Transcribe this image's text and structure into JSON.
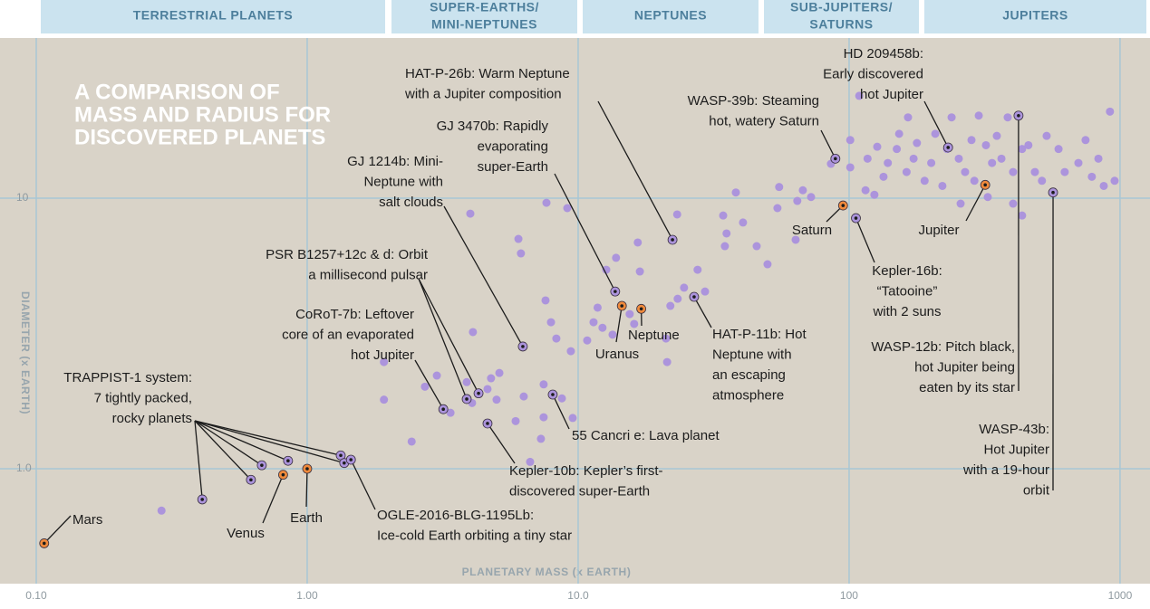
{
  "header": {
    "bands": [
      {
        "lines": [
          "TERRESTRIAL PLANETS"
        ]
      },
      {
        "lines": [
          "SUPER-EARTHS/",
          "MINI-NEPTUNES"
        ]
      },
      {
        "lines": [
          "NEPTUNES"
        ]
      },
      {
        "lines": [
          "SUB-JUPITERS/",
          "SATURNS"
        ]
      },
      {
        "lines": [
          "JUPITERS"
        ]
      }
    ]
  },
  "chart_data": {
    "type": "scatter",
    "title": [
      "A COMPARISON OF",
      "MASS AND RADIUS FOR",
      "DISCOVERED PLANETS"
    ],
    "x_label": "PLANETARY MASS (x EARTH)",
    "y_label": "DIAMETER (x EARTH)",
    "xscale": "log",
    "yscale": "log",
    "xlim": [
      0.0735,
      1290
    ],
    "ylim": [
      0.376,
      39.1
    ],
    "xticks": [
      {
        "value": 0.1,
        "label": "0.10"
      },
      {
        "value": 1,
        "label": "1.00"
      },
      {
        "value": 10,
        "label": "10.0"
      },
      100,
      1000
    ],
    "yticks": [
      {
        "value": 1,
        "label": "1.0"
      },
      10
    ],
    "grid": true,
    "series": [
      {
        "color": "#ac94dc",
        "x": [
          0.29,
          1.92,
          1.92,
          2.43,
          2.72,
          3.01,
          3.38,
          3.88,
          4.06,
          4.63,
          4.77,
          5.12,
          5.0,
          6.3,
          5.88,
          7.29,
          6.65,
          7.46,
          8.71,
          9.55,
          7.46,
          9.4,
          10.8,
          11.4,
          11.8,
          12.3,
          13.4,
          16.1,
          15.5,
          16.9,
          16.6,
          21.3,
          21.1,
          21.9,
          23.3,
          24.6,
          27.6,
          29.4,
          7.58,
          7.94,
          8.31,
          6.02,
          6.15,
          4.0,
          4.09,
          7.64,
          9.12,
          12.7,
          13.8,
          23.2,
          34.3,
          35.3,
          34.8,
          40.6,
          45.6,
          50.0,
          54.4,
          55.2,
          64.4,
          67.5,
          72.4,
          38.2,
          63.5,
          85.7,
          101,
          101,
          117,
          115,
          124,
          134,
          139,
          150,
          153,
          163,
          173,
          178,
          190,
          201,
          208,
          221,
          239,
          254,
          268,
          283,
          301,
          320,
          337,
          351,
          365,
          385,
          403,
          435,
          459,
          485,
          515,
          593,
          625,
          702,
          746,
          787,
          832,
          871,
          918,
          955,
          403,
          435,
          109,
          325,
          258,
          165,
          290,
          127,
          230,
          536
        ],
        "y": [
          0.7,
          2.48,
          1.8,
          1.26,
          2.01,
          2.21,
          1.61,
          2.09,
          1.75,
          1.97,
          2.16,
          2.26,
          1.8,
          1.85,
          1.5,
          1.29,
          1.06,
          1.55,
          1.82,
          1.54,
          2.05,
          2.72,
          2.98,
          3.48,
          3.94,
          3.32,
          3.13,
          3.43,
          3.73,
          5.36,
          6.86,
          2.48,
          3.03,
          4.0,
          4.25,
          4.67,
          5.44,
          4.52,
          4.19,
          3.48,
          3.03,
          7.07,
          6.25,
          8.77,
          3.2,
          9.62,
          9.19,
          5.44,
          6.02,
          8.71,
          8.63,
          7.41,
          6.65,
          8.13,
          6.65,
          5.7,
          9.19,
          11.0,
          9.77,
          10.7,
          10.1,
          10.5,
          7.02,
          13.4,
          16.4,
          13.0,
          14.0,
          10.7,
          10.3,
          12.0,
          13.5,
          15.2,
          17.3,
          12.5,
          14.0,
          16.0,
          11.6,
          13.5,
          17.3,
          11.1,
          19.9,
          14.0,
          12.5,
          16.4,
          20.2,
          15.7,
          13.5,
          17.0,
          14.0,
          19.9,
          12.5,
          15.2,
          15.7,
          12.5,
          11.6,
          15.2,
          12.5,
          13.5,
          16.4,
          12.0,
          14.0,
          11.1,
          20.9,
          11.6,
          9.55,
          8.63,
          23.9,
          10.1,
          9.55,
          19.9,
          11.6,
          15.5,
          15.2,
          17.0
        ]
      }
    ],
    "annotations": [
      {
        "lines": [
          "Mars"
        ],
        "x": [
          0.107
        ],
        "y": [
          0.53
        ],
        "color": "#f08a3c"
      },
      {
        "lines": [
          "Venus"
        ],
        "x": [
          0.815
        ],
        "y": [
          0.95
        ],
        "color": "#f08a3c"
      },
      {
        "lines": [
          "Earth"
        ],
        "x": [
          1
        ],
        "y": [
          1
        ],
        "color": "#f08a3c"
      },
      {
        "lines": [
          "TRAPPIST-1 system:",
          "7 tightly packed,",
          "rocky planets"
        ],
        "x": [
          0.41,
          0.62,
          0.68,
          0.85,
          1.33,
          1.37
        ],
        "y": [
          0.77,
          0.91,
          1.03,
          1.07,
          1.12,
          1.05
        ],
        "color": "#ac94dc"
      },
      {
        "lines": [
          "OGLE-2016-BLG-1195Lb:",
          "Ice-cold Earth orbiting a tiny star"
        ],
        "x": [
          1.45
        ],
        "y": [
          1.08
        ],
        "color": "#ac94dc"
      },
      {
        "lines": [
          "CoRoT-7b: Leftover",
          "core of an evaporated",
          "hot Jupiter"
        ],
        "x": [
          3.18
        ],
        "y": [
          1.66
        ],
        "color": "#ac94dc"
      },
      {
        "lines": [
          "PSR B1257+12c & d: Orbit",
          "a millisecond pulsar"
        ],
        "x": [
          3.88,
          4.29
        ],
        "y": [
          1.81,
          1.9
        ],
        "color": "#ac94dc"
      },
      {
        "lines": [
          "GJ 1214b: Mini-",
          "Neptune with",
          "salt clouds"
        ],
        "x": [
          6.25
        ],
        "y": [
          2.83
        ],
        "color": "#ac94dc"
      },
      {
        "lines": [
          "GJ 3470b: Rapidly",
          "evaporating",
          "super-Earth"
        ],
        "x": [
          13.7
        ],
        "y": [
          4.52
        ],
        "color": "#ac94dc"
      },
      {
        "lines": [
          "HAT-P-26b: Warm Neptune",
          "with a Jupiter composition"
        ],
        "x": [
          22.3
        ],
        "y": [
          7.02
        ],
        "color": "#ac94dc"
      },
      {
        "lines": [
          "Uranus"
        ],
        "x": [
          14.5
        ],
        "y": [
          4.0
        ],
        "color": "#f08a3c"
      },
      {
        "lines": [
          "Neptune"
        ],
        "x": [
          17.1
        ],
        "y": [
          3.9
        ],
        "color": "#f08a3c"
      },
      {
        "lines": [
          "HAT-P-11b: Hot",
          "Neptune with",
          "an escaping",
          "atmosphere"
        ],
        "x": [
          26.8
        ],
        "y": [
          4.32
        ],
        "color": "#ac94dc"
      },
      {
        "lines": [
          "55 Cancri e: Lava planet"
        ],
        "x": [
          8.06
        ],
        "y": [
          1.88
        ],
        "color": "#ac94dc"
      },
      {
        "lines": [
          "Kepler-10b: Kepler’s first-",
          "discovered super-Earth"
        ],
        "x": [
          4.63
        ],
        "y": [
          1.47
        ],
        "color": "#ac94dc"
      },
      {
        "lines": [
          "WASP-39b: Steaming",
          "hot, watery Saturn"
        ],
        "x": [
          89
        ],
        "y": [
          14.0
        ],
        "color": "#ac94dc"
      },
      {
        "lines": [
          "Saturn"
        ],
        "x": [
          95
        ],
        "y": [
          9.4
        ],
        "color": "#f08a3c"
      },
      {
        "lines": [
          "Kepler-16b:",
          "“Tatooine”",
          "with 2 suns"
        ],
        "x": [
          106
        ],
        "y": [
          8.44
        ],
        "color": "#ac94dc"
      },
      {
        "lines": [
          "HD 209458b:",
          "Early discovered",
          "hot Jupiter"
        ],
        "x": [
          232
        ],
        "y": [
          15.4
        ],
        "color": "#ac94dc"
      },
      {
        "lines": [
          "Jupiter"
        ],
        "x": [
          318
        ],
        "y": [
          11.2
        ],
        "color": "#f08a3c"
      },
      {
        "lines": [
          "WASP-12b: Pitch black,",
          "hot Jupiter being",
          "eaten by its star"
        ],
        "x": [
          422
        ],
        "y": [
          20.2
        ],
        "color": "#ac94dc"
      },
      {
        "lines": [
          "WASP-43b:",
          "Hot Jupiter",
          "with a 19-hour",
          "orbit"
        ],
        "x": [
          566
        ],
        "y": [
          10.5
        ],
        "color": "#ac94dc"
      }
    ]
  }
}
